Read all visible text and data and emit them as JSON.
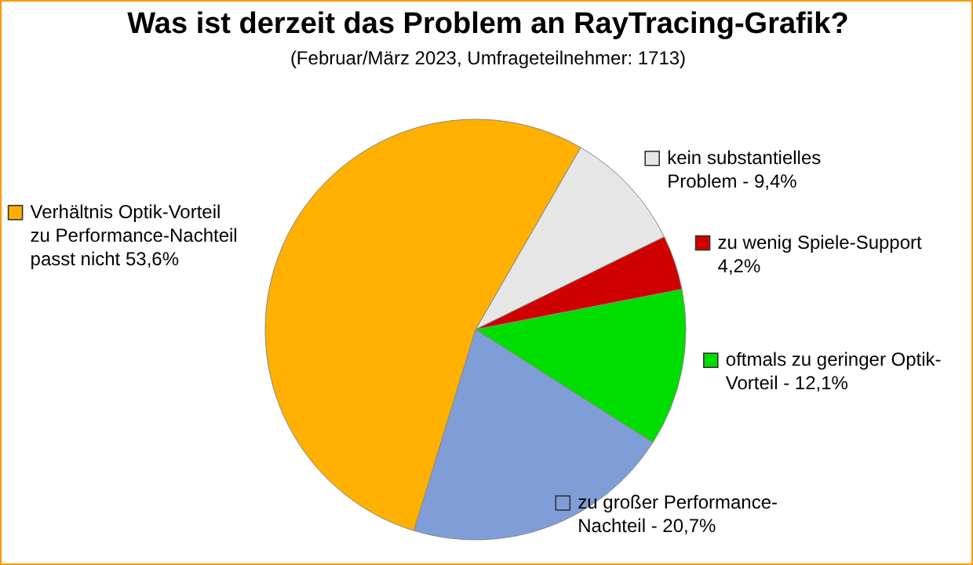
{
  "chart_data": {
    "type": "pie",
    "title": "Was ist derzeit das Problem an RayTracing-Grafik?",
    "subtitle": "(Februar/März 2023, Umfrageteilnehmer: 1713)",
    "categories": [
      "kein substantielles Problem -",
      "zu wenig Spiele-Support",
      "oftmals zu geringer Optik-Vorteil -",
      "zu großer Performance-Nachteil -",
      "Verhältnis Optik-Vorteil zu Performance-Nachteil passt nicht"
    ],
    "values": [
      9.4,
      4.2,
      12.1,
      20.7,
      53.6
    ],
    "colors": [
      "#e6e6e6",
      "#d00000",
      "#00dd00",
      "#7f9ed8",
      "#ffb000"
    ],
    "value_labels": [
      "9,4%",
      "4,2%",
      "12,1%",
      "20,7%",
      "53,6%"
    ],
    "legend": "right"
  }
}
